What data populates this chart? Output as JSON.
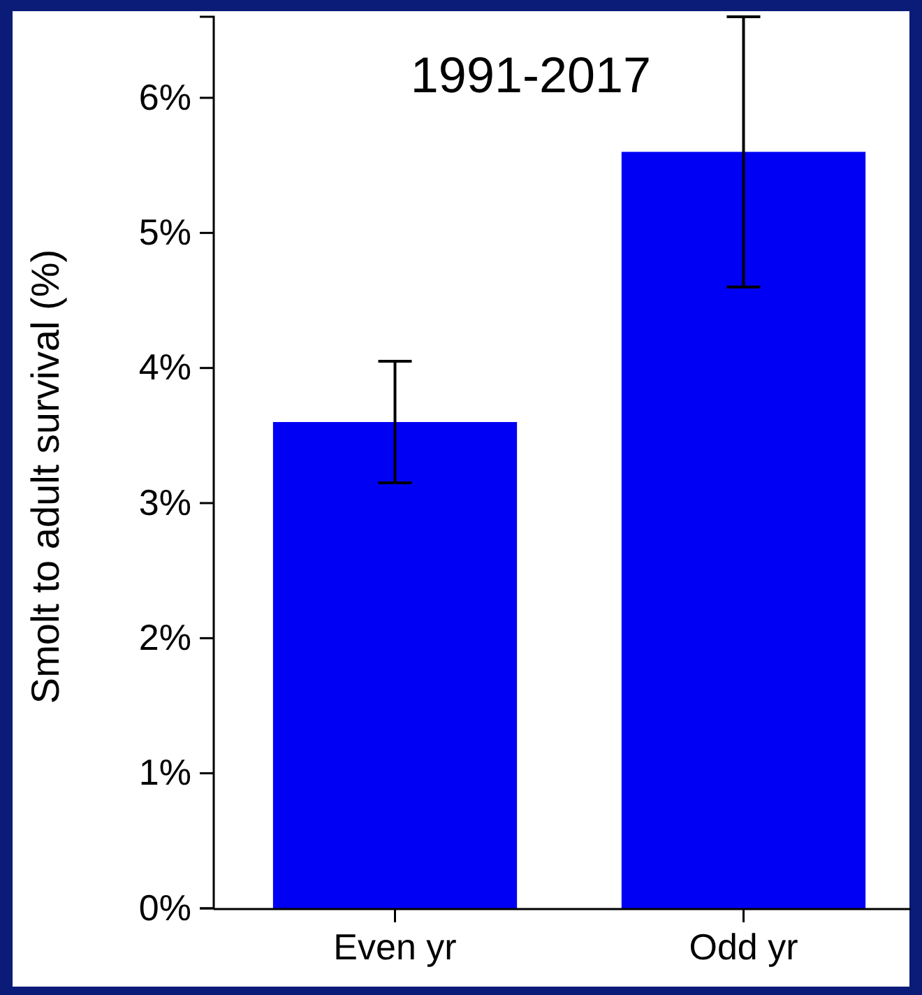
{
  "chart_data": {
    "type": "bar",
    "title": "1991-2017",
    "ylabel": "Smolt to adult survival (%)",
    "categories": [
      "Even yr",
      "Odd yr"
    ],
    "values": [
      3.6,
      5.6
    ],
    "color": "#0000f5",
    "errors": [
      [
        3.15,
        4.05
      ],
      [
        4.6,
        6.6
      ]
    ],
    "ylim": [
      0,
      6.6
    ],
    "yticks": [
      {
        "value": 0,
        "label": "0%"
      },
      {
        "value": 1,
        "label": "1%"
      },
      {
        "value": 2,
        "label": "2%"
      },
      {
        "value": 3,
        "label": "3%"
      },
      {
        "value": 4,
        "label": "4%"
      },
      {
        "value": 5,
        "label": "5%"
      },
      {
        "value": 6,
        "label": "6%"
      }
    ],
    "grid": false
  }
}
